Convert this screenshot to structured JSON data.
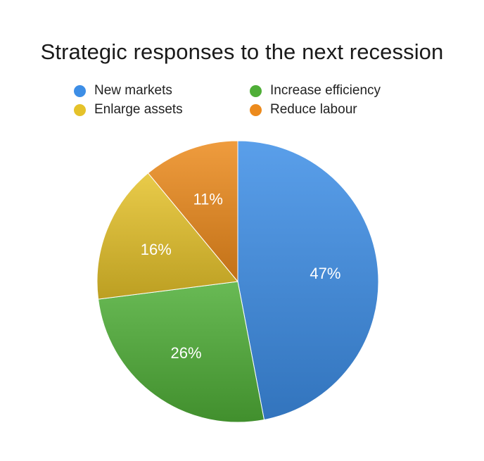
{
  "chart_data": {
    "type": "pie",
    "title": "Strategic responses to the next recession",
    "categories": [
      "New markets",
      "Increase efficiency",
      "Enlarge assets",
      "Reduce labour"
    ],
    "values": [
      47,
      26,
      16,
      11
    ],
    "value_labels": [
      "47%",
      "26%",
      "16%",
      "11%"
    ],
    "colors": [
      "#3d8ee6",
      "#4fae37",
      "#e5c22a",
      "#ec8a1c"
    ],
    "legend_position": "top"
  }
}
